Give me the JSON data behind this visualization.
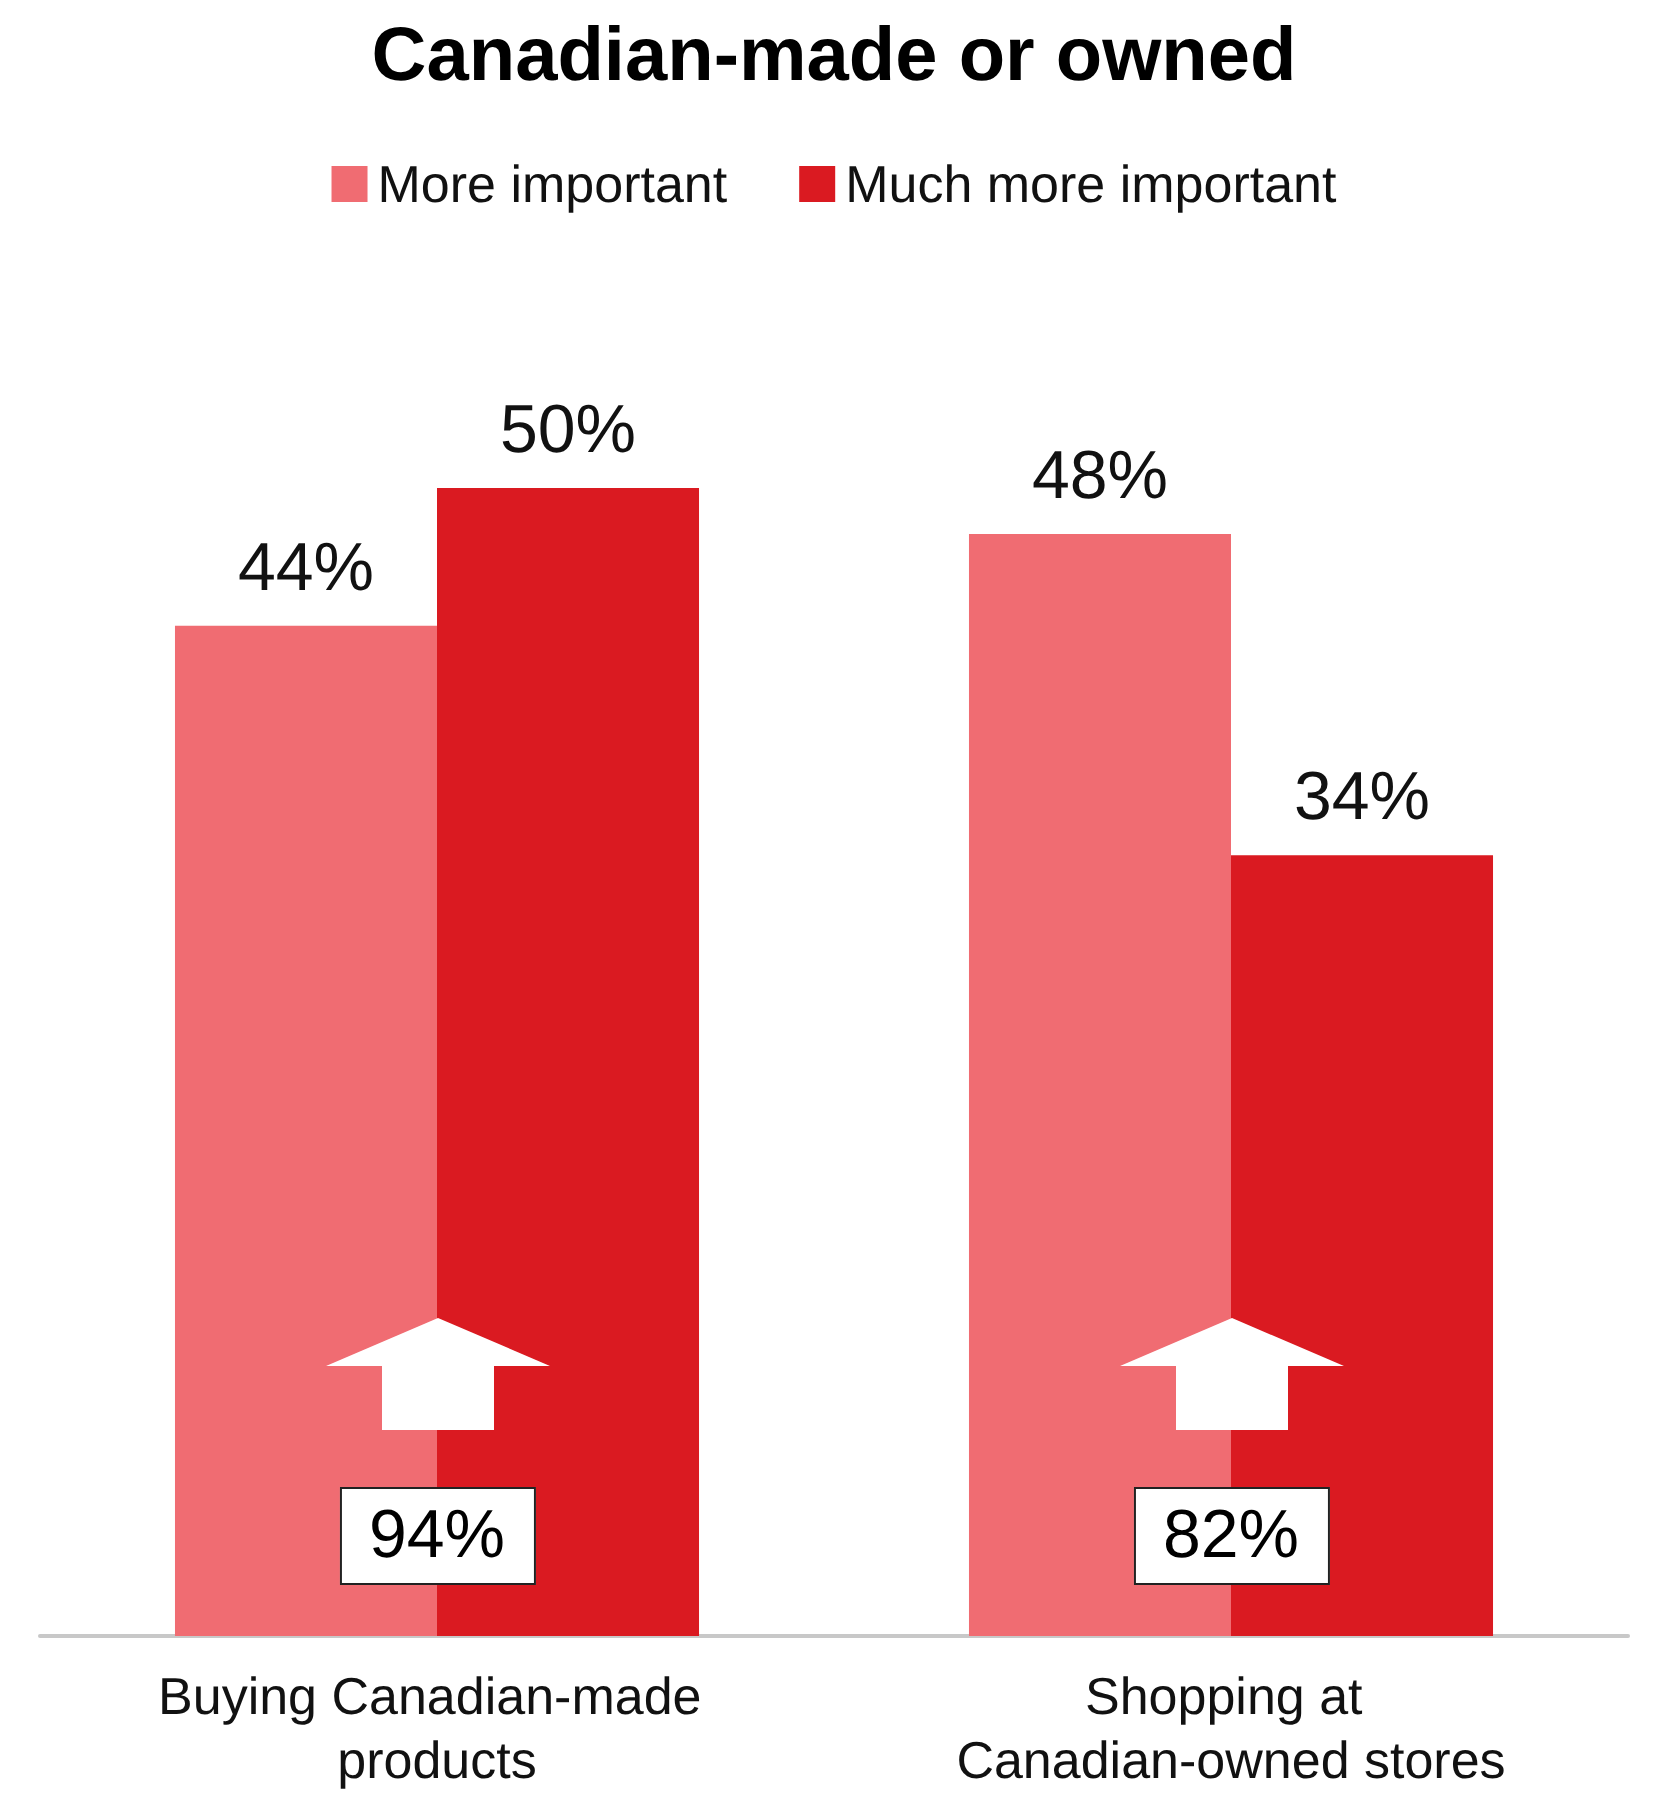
{
  "chart_data": {
    "type": "bar",
    "title": "Canadian-made or owned",
    "categories": [
      "Buying Canadian-made products",
      "Shopping at Canadian-owned stores"
    ],
    "series": [
      {
        "name": "More important",
        "color": "#f06c72",
        "values": [
          44,
          48
        ],
        "value_labels": [
          "44%",
          "48%"
        ]
      },
      {
        "name": "Much more important",
        "color": "#da1a21",
        "values": [
          50,
          34
        ],
        "value_labels": [
          "50%",
          "34%"
        ]
      }
    ],
    "legend": "top",
    "grid": false,
    "annotations": [
      "94%",
      "82%"
    ]
  }
}
